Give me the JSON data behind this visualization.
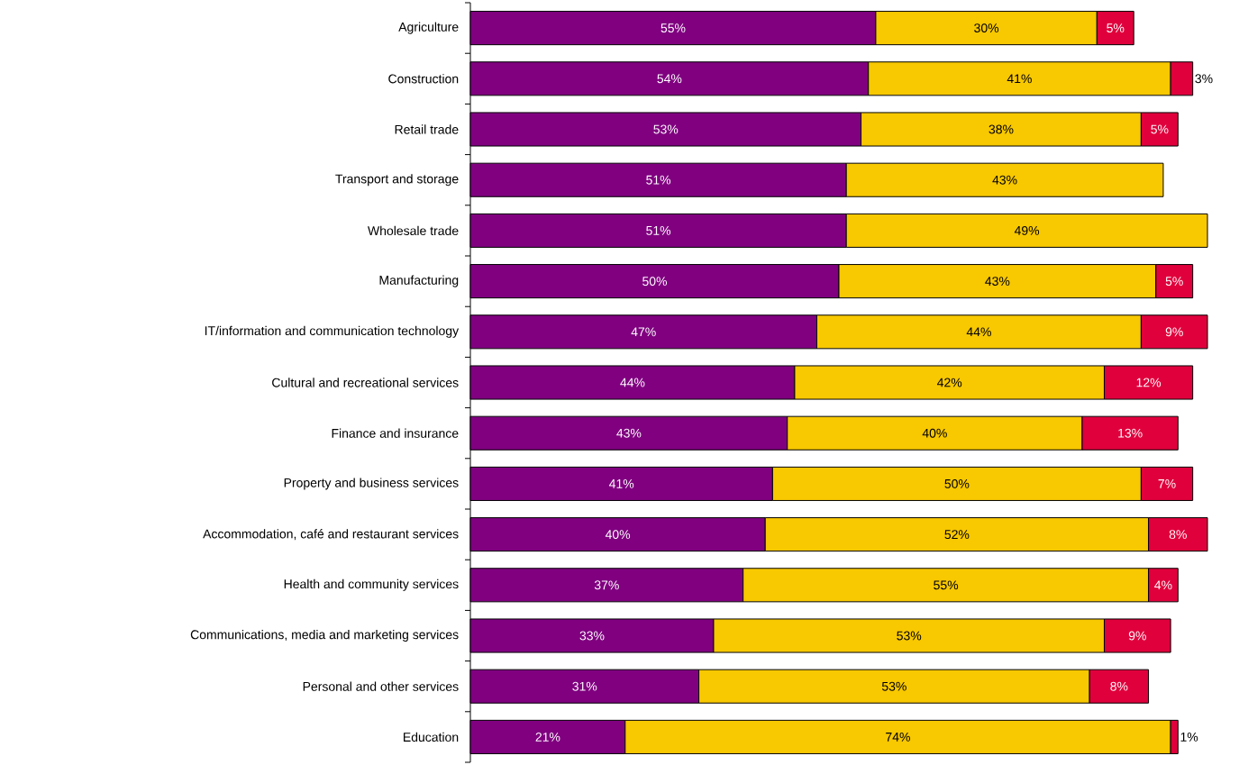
{
  "chart_data": {
    "type": "bar",
    "orientation": "horizontal",
    "stacked": true,
    "tick_labels": "y",
    "xlim": [
      0,
      100
    ],
    "categories": [
      "Agriculture",
      "Construction",
      "Retail trade",
      "Transport and storage",
      "Wholesale trade",
      "Manufacturing",
      "IT/information and communication technology",
      "Cultural and recreational services",
      "Finance and insurance",
      "Property and business services",
      "Accommodation, café and restaurant services",
      "Health and community services",
      "Communications, media and marketing services",
      "Personal and other services",
      "Education"
    ],
    "series": [
      {
        "color": "#800080",
        "values": [
          55,
          54,
          53,
          51,
          51,
          50,
          47,
          44,
          43,
          41,
          40,
          37,
          33,
          31,
          21
        ],
        "value_labels": [
          "55%",
          "54%",
          "53%",
          "51%",
          "51%",
          "50%",
          "47%",
          "44%",
          "43%",
          "41%",
          "40%",
          "37%",
          "33%",
          "31%",
          "21%"
        ]
      },
      {
        "color": "#f8c800",
        "values": [
          30,
          41,
          38,
          43,
          49,
          43,
          44,
          42,
          40,
          50,
          52,
          55,
          53,
          53,
          74
        ],
        "value_labels": [
          "30%",
          "41%",
          "38%",
          "43%",
          "49%",
          "43%",
          "44%",
          "42%",
          "40%",
          "50%",
          "52%",
          "55%",
          "53%",
          "53%",
          "74%"
        ]
      },
      {
        "color": "#e0003c",
        "values": [
          5,
          3,
          5,
          null,
          null,
          5,
          9,
          12,
          13,
          7,
          8,
          4,
          9,
          8,
          1
        ],
        "value_labels": [
          "5%",
          "3%",
          "5%",
          null,
          null,
          "5%",
          "9%",
          "12%",
          "13%",
          "7%",
          "8%",
          "4%",
          "9%",
          "8%",
          "1%"
        ]
      }
    ]
  }
}
